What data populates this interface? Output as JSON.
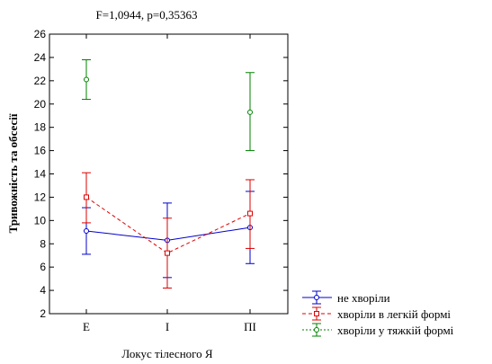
{
  "chart_data": {
    "type": "line",
    "title": "F=1,0944, p=0,35363",
    "xlabel": "Локус тілесного Я",
    "ylabel": "Тривожність та обсесії",
    "categories": [
      "Е",
      "І",
      "ПІ"
    ],
    "ylim": [
      2,
      26
    ],
    "yticks": [
      2,
      4,
      6,
      8,
      10,
      12,
      14,
      16,
      18,
      20,
      22,
      24,
      26
    ],
    "grid": false,
    "legend_position": "bottom-right",
    "series": [
      {
        "name": "не хворіли",
        "color": "#0000cc",
        "line_style": "solid",
        "marker": "circle",
        "connected": true,
        "values": [
          9.1,
          8.3,
          9.4
        ],
        "lower": [
          7.1,
          5.1,
          6.3
        ],
        "upper": [
          11.1,
          11.5,
          12.5
        ]
      },
      {
        "name": "хворіли в легкій формі",
        "color": "#dd0000",
        "line_style": "dashed",
        "marker": "square",
        "connected": true,
        "values": [
          12.0,
          7.2,
          10.6
        ],
        "lower": [
          9.8,
          4.2,
          7.6
        ],
        "upper": [
          14.1,
          10.2,
          13.5
        ]
      },
      {
        "name": "хворіли у тяжкій формі",
        "color": "#008000",
        "line_style": "dotted",
        "marker": "circle",
        "connected": false,
        "values": [
          22.1,
          null,
          19.3
        ],
        "lower": [
          20.4,
          null,
          16.0
        ],
        "upper": [
          23.8,
          null,
          22.7
        ]
      }
    ]
  }
}
